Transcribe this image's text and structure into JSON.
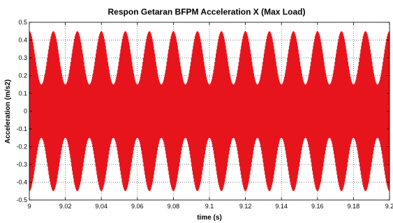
{
  "chart_data": {
    "type": "line",
    "title": "Respon Getaran BFPM Acceleration X (Max Load)",
    "xlabel": "time (s)",
    "ylabel": "Acceleration (m/s2)",
    "xlim": [
      9,
      9.2
    ],
    "ylim": [
      -0.5,
      0.5
    ],
    "grid": true,
    "xticks": [
      "9",
      "9.02",
      "9.04",
      "9.06",
      "9.08",
      "9.1",
      "9.12",
      "9.14",
      "9.16",
      "9.18",
      "9.2"
    ],
    "yticks": [
      "0.5",
      "0.4",
      "0.3",
      "0.2",
      "0.1",
      "0",
      "-0.1",
      "-0.2",
      "-0.3",
      "-0.4",
      "-0.5"
    ],
    "series": [
      {
        "color": "#e8141c",
        "signal": {
          "carrier_hz": 3000,
          "envelope_hz": 75,
          "peak_amplitude": 0.45,
          "trough_amplitude": 0.15,
          "offset": 0
        }
      }
    ]
  }
}
